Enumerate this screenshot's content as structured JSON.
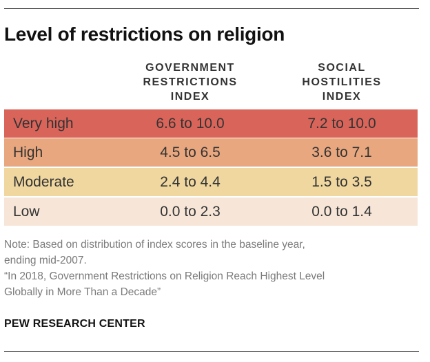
{
  "title": "Level of restrictions on religion",
  "columns": {
    "gov": [
      "GOVERNMENT",
      "RESTRICTIONS",
      "INDEX"
    ],
    "soc": [
      "SOCIAL",
      "HOSTILITIES",
      "INDEX"
    ]
  },
  "rows": [
    {
      "label": "Very high",
      "gov": "6.6 to 10.0",
      "soc": "7.2 to 10.0",
      "color": "#d9645a"
    },
    {
      "label": "High",
      "gov": "4.5 to 6.5",
      "soc": "3.6 to 7.1",
      "color": "#e8a77e"
    },
    {
      "label": "Moderate",
      "gov": "2.4 to 4.4",
      "soc": "1.5 to 3.5",
      "color": "#efd79f"
    },
    {
      "label": "Low",
      "gov": "0.0 to 2.3",
      "soc": "0.0 to 1.4",
      "color": "#f7e6d8"
    }
  ],
  "note": [
    "Note: Based on distribution of index scores in the baseline year,",
    "ending mid-2007.",
    "“In 2018, Government Restrictions on Religion Reach Highest Level",
    "Globally in More Than a Decade”"
  ],
  "source": "PEW RESEARCH CENTER"
}
